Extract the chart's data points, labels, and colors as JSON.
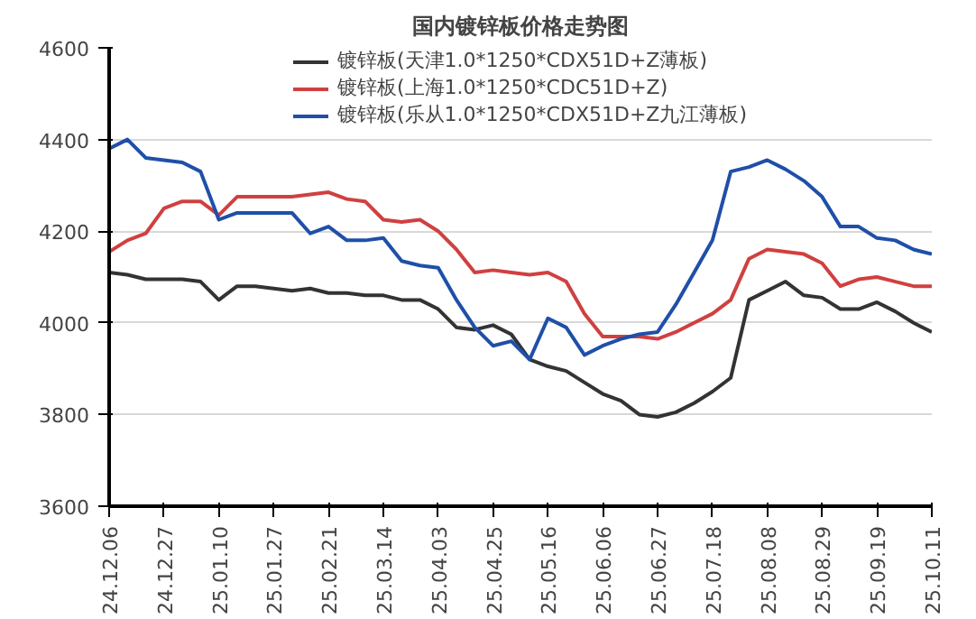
{
  "chart_data": {
    "type": "line",
    "title": "国内镀锌板价格走势图",
    "categories": [
      "24.12.06",
      null,
      null,
      "24.12.27",
      null,
      null,
      "25.01.10",
      null,
      null,
      "25.01.27",
      null,
      null,
      "25.02.21",
      null,
      null,
      "25.03.14",
      null,
      null,
      "25.04.03",
      null,
      null,
      "25.04.25",
      null,
      null,
      "25.05.16",
      null,
      null,
      "25.06.06",
      null,
      null,
      "25.06.27",
      null,
      null,
      "25.07.18",
      null,
      null,
      "25.08.08",
      null,
      null,
      "25.08.29",
      null,
      null,
      "25.09.19",
      null,
      null,
      "25.10.11"
    ],
    "series": [
      {
        "name": "镀锌板(天津1.0*1250*CDX51D+Z薄板)",
        "color": "#333333",
        "values": [
          4110,
          4105,
          4095,
          4095,
          4095,
          4090,
          4050,
          4080,
          4080,
          4075,
          4070,
          4075,
          4065,
          4065,
          4060,
          4060,
          4050,
          4050,
          4030,
          3990,
          3985,
          3995,
          3975,
          3920,
          3905,
          3895,
          3870,
          3845,
          3830,
          3800,
          3795,
          3805,
          3825,
          3850,
          3880,
          4050,
          4070,
          4090,
          4060,
          4055,
          4030,
          4030,
          4045,
          4025,
          4000,
          3980
        ]
      },
      {
        "name": "镀锌板(上海1.0*1250*CDC51D+Z)",
        "color": "#d04040",
        "values": [
          4155,
          4180,
          4195,
          4250,
          4265,
          4265,
          4235,
          4275,
          4275,
          4275,
          4275,
          4280,
          4285,
          4270,
          4265,
          4225,
          4220,
          4225,
          4200,
          4160,
          4110,
          4115,
          4110,
          4105,
          4110,
          4090,
          4020,
          3970,
          3970,
          3970,
          3965,
          3980,
          4000,
          4020,
          4050,
          4140,
          4160,
          4155,
          4150,
          4130,
          4080,
          4095,
          4100,
          4090,
          4080,
          4080
        ]
      },
      {
        "name": "镀锌板(乐从1.0*1250*CDX51D+Z九江薄板)",
        "color": "#1f4fa8",
        "values": [
          4380,
          4400,
          4360,
          4355,
          4350,
          4330,
          4225,
          4240,
          4240,
          4240,
          4240,
          4195,
          4210,
          4180,
          4180,
          4185,
          4135,
          4125,
          4120,
          4050,
          3990,
          3950,
          3960,
          3920,
          4010,
          3990,
          3930,
          3950,
          3965,
          3975,
          3980,
          4040,
          4110,
          4180,
          4330,
          4340,
          4355,
          4335,
          4310,
          4275,
          4210,
          4210,
          4185,
          4180,
          4160,
          4150
        ]
      }
    ],
    "ylim": [
      3600,
      4600
    ],
    "yticks": [
      3600,
      3800,
      4000,
      4200,
      4400,
      4600
    ],
    "grid": "y",
    "legend": "top",
    "marker": "none",
    "line_style": "solid"
  }
}
